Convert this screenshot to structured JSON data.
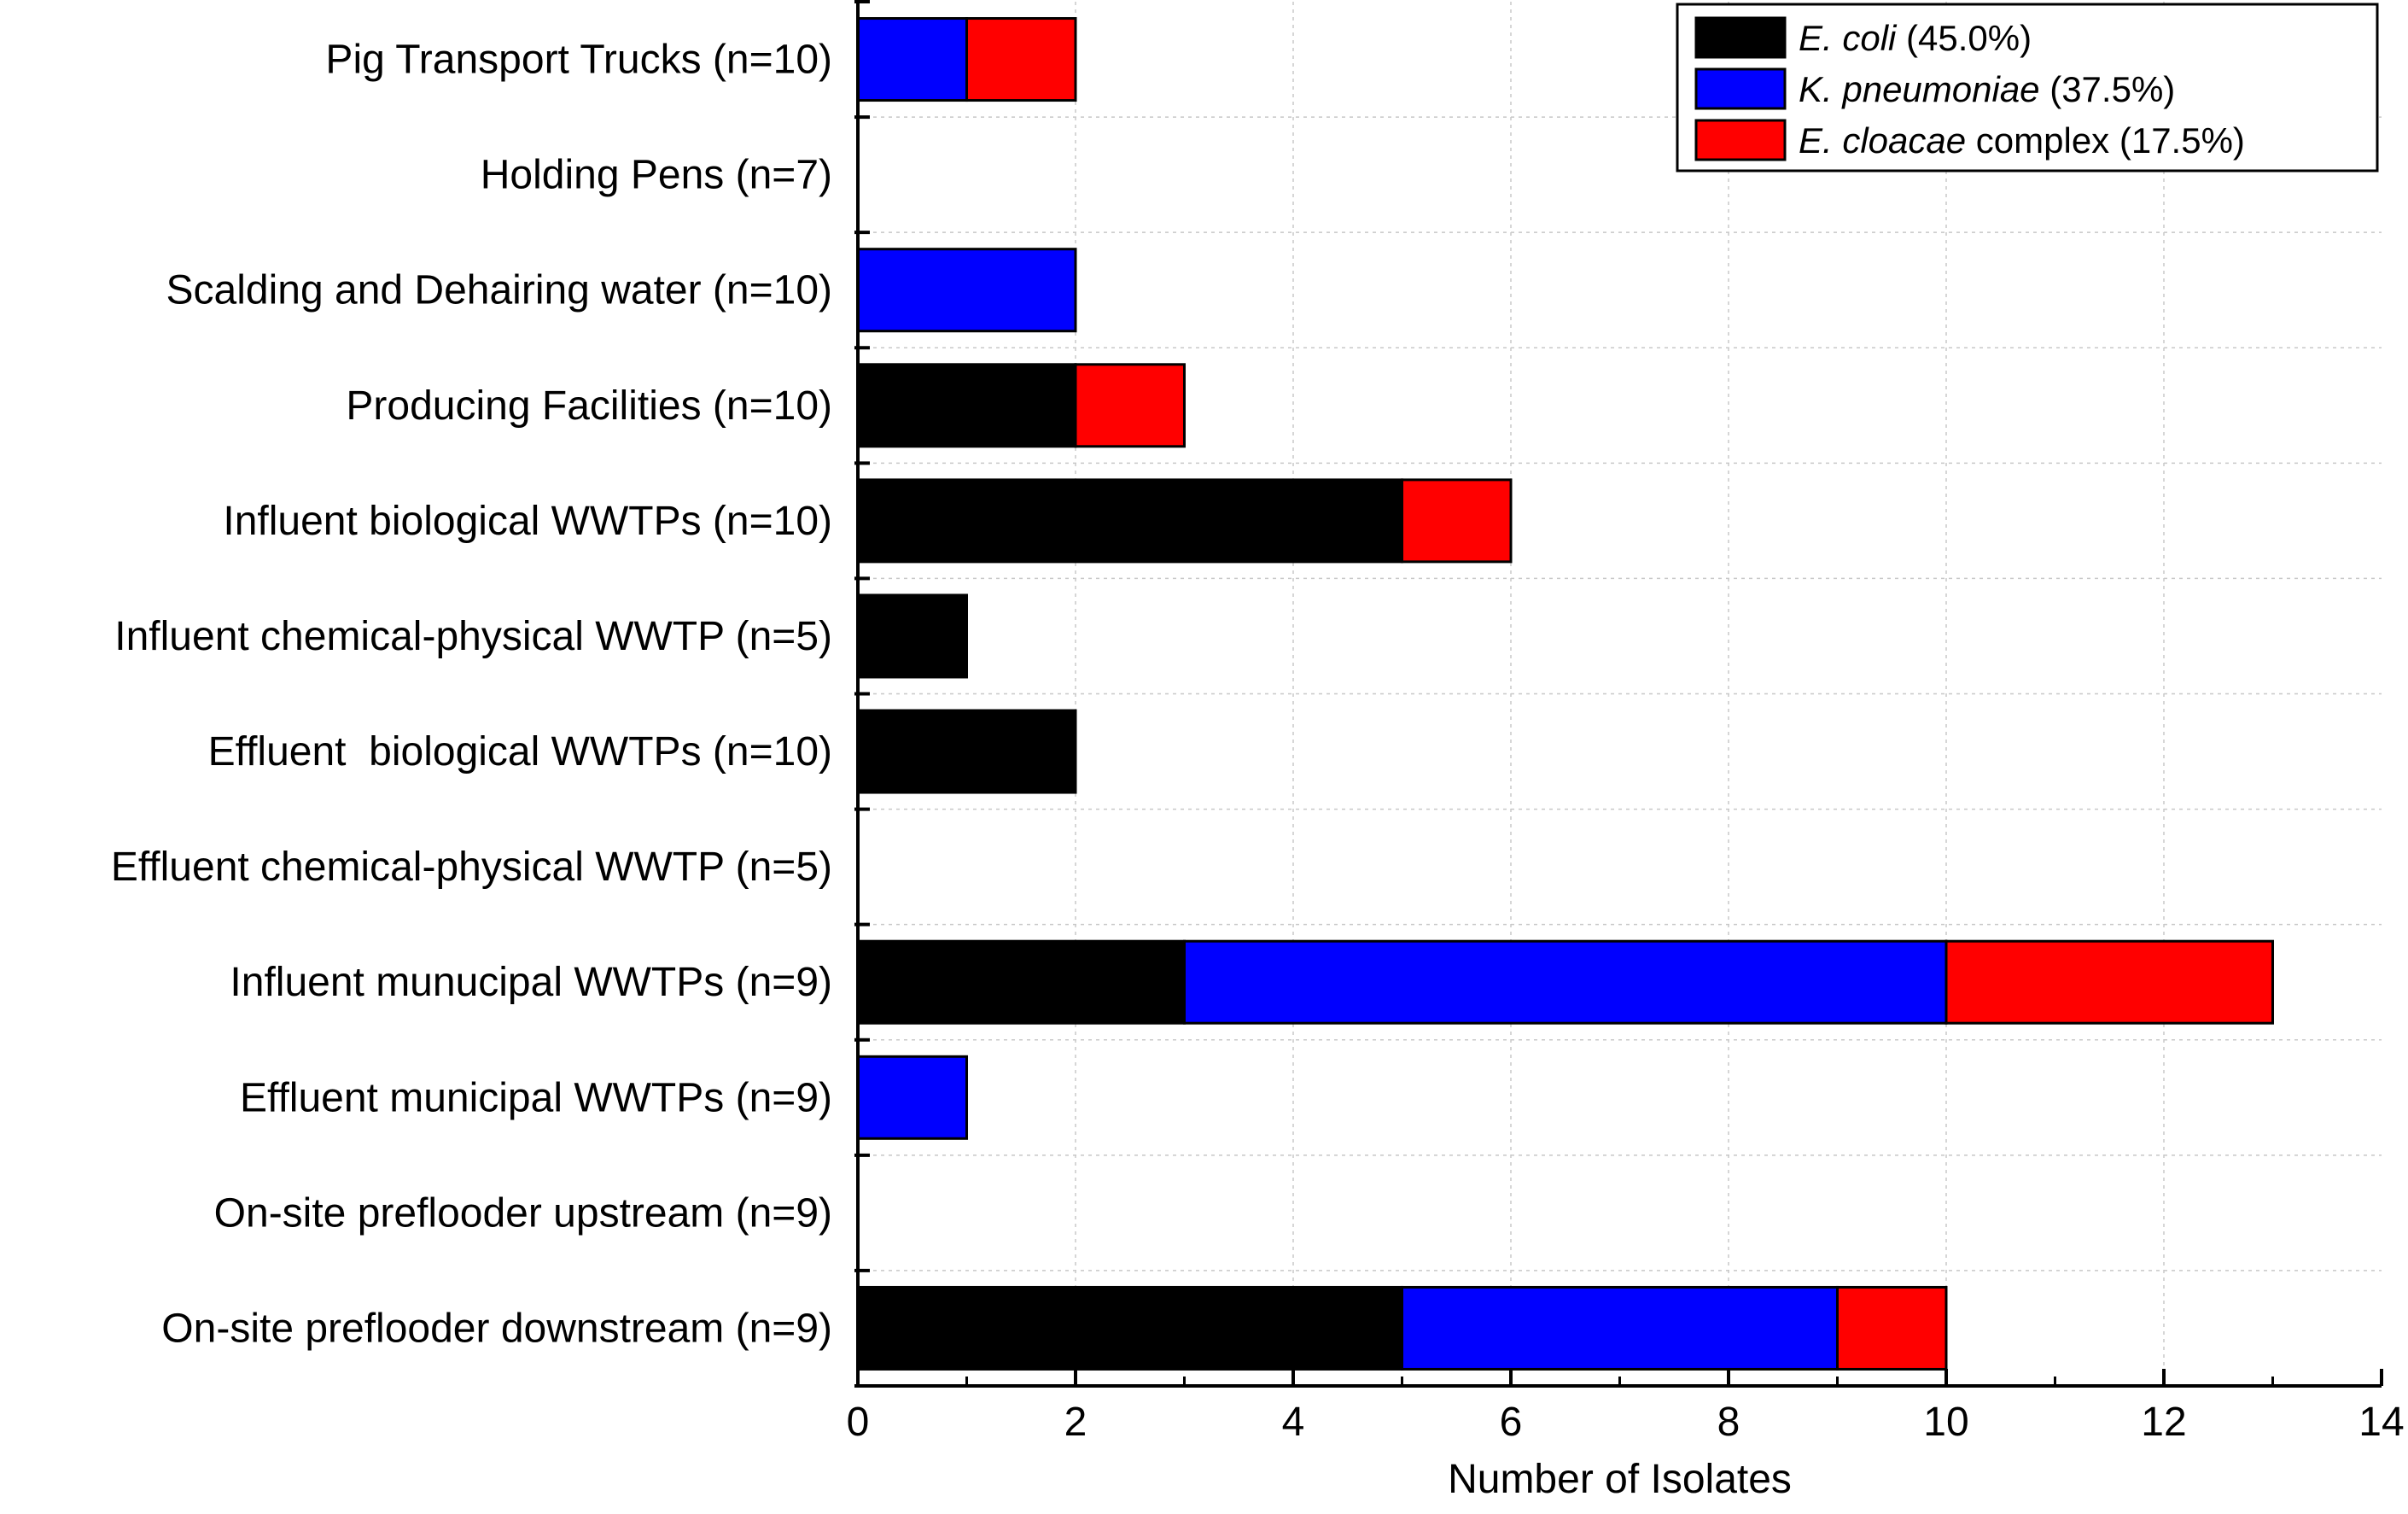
{
  "chart_data": {
    "type": "bar",
    "orientation": "horizontal",
    "stacked": true,
    "categories": [
      "Pig Transport Trucks (n=10)",
      "Holding Pens (n=7)",
      "Scalding and Dehairing water (n=10)",
      "Producing Facilities (n=10)",
      "Influent biological WWTPs (n=10)",
      "Influent chemical-physical WWTP (n=5)",
      "Effluent  biological WWTPs (n=10)",
      "Effluent chemical-physical WWTP (n=5)",
      "Influent munucipal WWTPs (n=9)",
      "Effluent municipal WWTPs (n=9)",
      "On-site preflooder upstream (n=9)",
      "On-site preflooder downstream (n=9)"
    ],
    "series": [
      {
        "name": "E. coli",
        "italic_part": "E. coli",
        "rest": " (45.0%)",
        "color": "#000000",
        "values": [
          0,
          0,
          0,
          2,
          5,
          1,
          2,
          0,
          3,
          0,
          0,
          5
        ]
      },
      {
        "name": "K. pneumoniae",
        "italic_part": "K. pneumoniae",
        "rest": " (37.5%)",
        "color": "#0000ff",
        "values": [
          1,
          0,
          2,
          0,
          0,
          0,
          0,
          0,
          7,
          1,
          0,
          4
        ]
      },
      {
        "name": "E. cloacae complex",
        "italic_part": "E. cloacae",
        "rest": " complex (17.5%)",
        "color": "#ff0000",
        "values": [
          1,
          0,
          0,
          1,
          1,
          0,
          0,
          0,
          3,
          0,
          0,
          1
        ]
      }
    ],
    "xlabel": "Number of Isolates",
    "ylabel": "",
    "title": "",
    "xlim": [
      0,
      14
    ],
    "xticks": [
      0,
      2,
      4,
      6,
      8,
      10,
      12,
      14
    ],
    "grid": true,
    "legend_position": "top-right"
  }
}
